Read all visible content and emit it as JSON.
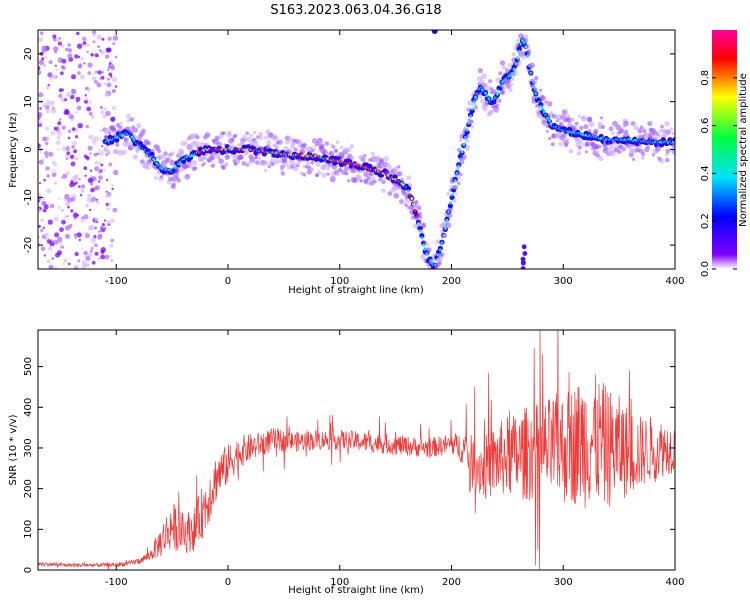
{
  "title": "S163.2023.063.04.36.G18",
  "colors": {
    "snr_line": "#f03a3a",
    "axis": "#000000",
    "background": "#ffffff"
  },
  "chart_data": [
    {
      "type": "heatmap",
      "xlabel": "Height of straight line (km)",
      "ylabel": "Frequency (Hz)",
      "xlim": [
        -170,
        400
      ],
      "ylim": [
        -25,
        25
      ],
      "xticks": [
        -100,
        0,
        100,
        200,
        300,
        400
      ],
      "yticks": [
        -20,
        -10,
        0,
        10,
        20
      ],
      "colorbar": {
        "label": "Normalized spectral amplitude",
        "range": [
          0,
          1
        ],
        "ticks": [
          0.0,
          0.2,
          0.4,
          0.6,
          0.8
        ],
        "colormap": "rainbow",
        "stops": [
          "#ffffff",
          "#8000ff",
          "#0000ff",
          "#00e0ff",
          "#00ff40",
          "#ffff00",
          "#ff0000",
          "#ff00a0"
        ]
      },
      "frequency_track": {
        "x": [
          -170,
          -140,
          -110,
          -90,
          -80,
          -70,
          -60,
          -50,
          -40,
          -30,
          -20,
          0,
          20,
          50,
          80,
          100,
          120,
          140,
          155,
          160,
          165,
          170,
          175,
          180,
          185,
          190,
          195,
          200,
          205,
          210,
          215,
          220,
          225,
          230,
          235,
          240,
          245,
          250,
          255,
          260,
          263,
          266,
          270,
          275,
          280,
          290,
          300,
          320,
          340,
          360,
          380,
          400
        ],
        "y": [
          0,
          0,
          1.5,
          3.5,
          1,
          -1,
          -4,
          -4.5,
          -2,
          -1,
          0,
          0,
          0,
          -1,
          -1.5,
          -2.5,
          -3.5,
          -5,
          -7,
          -8,
          -10.5,
          -15,
          -20,
          -23,
          -24.5,
          -21,
          -16,
          -10,
          -5,
          0,
          5,
          10,
          13,
          12,
          10,
          11,
          14,
          15,
          16,
          20,
          23,
          22,
          17,
          12,
          9,
          5,
          4,
          3,
          2,
          2,
          1.5,
          1.5
        ],
        "peak_amplitude_range": [
          -30,
          170
        ]
      },
      "noise_region_x": [
        -170,
        -100
      ]
    },
    {
      "type": "line",
      "xlabel": "Height of straight line (km)",
      "ylabel": "SNR (10 * v/v)",
      "xlim": [
        -170,
        400
      ],
      "ylim": [
        0,
        590
      ],
      "xticks": [
        -100,
        0,
        100,
        200,
        300,
        400
      ],
      "yticks": [
        0,
        100,
        200,
        300,
        400,
        500
      ],
      "series": [
        {
          "x": [
            -170,
            -140,
            -110,
            -90,
            -80,
            -70,
            -60,
            -50,
            -40,
            -30,
            -20,
            -10,
            0,
            10,
            20,
            30,
            40,
            60,
            80,
            100,
            120,
            140,
            160,
            180,
            200,
            210,
            220,
            230,
            240,
            250,
            260,
            270,
            280,
            290,
            300,
            310,
            320,
            330,
            340,
            350,
            360,
            370,
            380,
            390,
            400
          ],
          "y": [
            15,
            12,
            12,
            15,
            22,
            35,
            70,
            110,
            90,
            100,
            160,
            230,
            260,
            290,
            300,
            310,
            320,
            315,
            320,
            320,
            315,
            310,
            305,
            300,
            310,
            300,
            260,
            250,
            270,
            280,
            280,
            290,
            290,
            300,
            300,
            310,
            320,
            320,
            300,
            300,
            290,
            290,
            300,
            300,
            300
          ],
          "noise_amplitude": [
            5,
            5,
            5,
            6,
            8,
            12,
            40,
            60,
            50,
            55,
            70,
            60,
            50,
            40,
            35,
            30,
            30,
            25,
            25,
            25,
            25,
            25,
            25,
            25,
            25,
            40,
            70,
            80,
            90,
            100,
            110,
            120,
            120,
            130,
            140,
            150,
            170,
            160,
            150,
            130,
            110,
            90,
            80,
            70,
            60
          ]
        }
      ]
    }
  ]
}
